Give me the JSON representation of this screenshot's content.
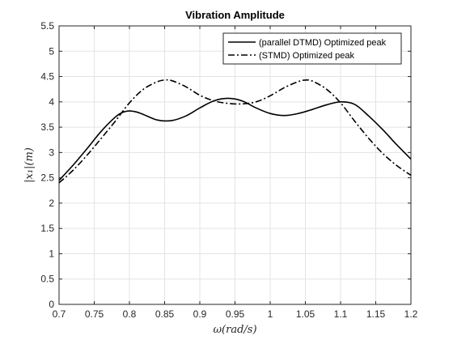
{
  "chart_data": {
    "type": "line",
    "title": "Vibration Amplitude",
    "xlabel": "ω(rad/s)",
    "ylabel": "|x₁|(m)",
    "xlim": [
      0.7,
      1.2
    ],
    "ylim": [
      0,
      5.5
    ],
    "x_ticks": [
      "0.7",
      "0.75",
      "0.8",
      "0.85",
      "0.9",
      "0.95",
      "1",
      "1.05",
      "1.1",
      "1.15",
      "1.2"
    ],
    "y_ticks": [
      "0",
      "0.5",
      "1",
      "1.5",
      "2",
      "2.5",
      "3",
      "3.5",
      "4",
      "4.5",
      "5",
      "5.5"
    ],
    "grid": true,
    "legend_position": "top-right",
    "series": [
      {
        "name": "(parallel DTMD) Optimized peak",
        "line_style": "solid",
        "color": "#000000",
        "x": [
          0.7,
          0.72,
          0.74,
          0.76,
          0.78,
          0.79,
          0.8,
          0.81,
          0.82,
          0.84,
          0.86,
          0.88,
          0.9,
          0.92,
          0.94,
          0.96,
          0.98,
          1.0,
          1.02,
          1.04,
          1.06,
          1.08,
          1.1,
          1.12,
          1.14,
          1.16,
          1.18,
          1.2
        ],
        "y": [
          2.45,
          2.75,
          3.08,
          3.42,
          3.7,
          3.79,
          3.82,
          3.8,
          3.75,
          3.64,
          3.63,
          3.72,
          3.88,
          4.02,
          4.07,
          4.02,
          3.88,
          3.77,
          3.73,
          3.77,
          3.85,
          3.94,
          4.0,
          3.95,
          3.72,
          3.45,
          3.15,
          2.87
        ]
      },
      {
        "name": "(STMD) Optimized peak",
        "line_style": "dashdot",
        "color": "#000000",
        "x": [
          0.7,
          0.72,
          0.74,
          0.76,
          0.78,
          0.8,
          0.82,
          0.84,
          0.85,
          0.86,
          0.88,
          0.9,
          0.92,
          0.94,
          0.96,
          0.98,
          1.0,
          1.02,
          1.04,
          1.05,
          1.06,
          1.08,
          1.1,
          1.12,
          1.14,
          1.16,
          1.18,
          1.2
        ],
        "y": [
          2.4,
          2.65,
          2.95,
          3.28,
          3.62,
          3.98,
          4.25,
          4.4,
          4.43,
          4.42,
          4.3,
          4.13,
          4.02,
          3.97,
          3.96,
          4.0,
          4.12,
          4.28,
          4.4,
          4.43,
          4.41,
          4.25,
          3.98,
          3.62,
          3.28,
          2.98,
          2.74,
          2.55
        ]
      }
    ]
  }
}
